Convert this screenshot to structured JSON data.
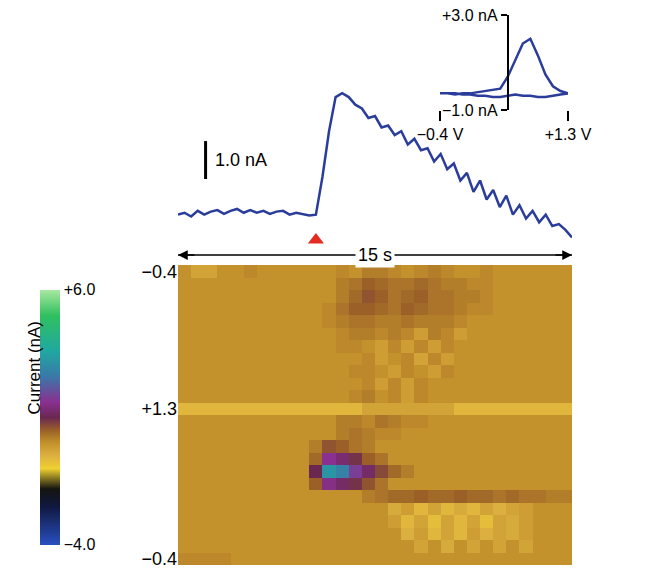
{
  "chart_data": [
    {
      "type": "line",
      "x": [
        0,
        0.25,
        0.5,
        0.75,
        1,
        1.25,
        1.5,
        1.75,
        2,
        2.25,
        2.5,
        2.75,
        3,
        3.25,
        3.5,
        3.75,
        4,
        4.25,
        4.5,
        4.75,
        5,
        5.25,
        5.5,
        5.75,
        6,
        6.25,
        6.5,
        6.75,
        7,
        7.25,
        7.5,
        7.75,
        8,
        8.25,
        8.5,
        8.75,
        9,
        9.25,
        9.5,
        9.75,
        10,
        10.25,
        10.5,
        10.75,
        11,
        11.25,
        11.5,
        11.75,
        12,
        12.25,
        12.5,
        12.75,
        13,
        13.25,
        13.5,
        13.75,
        14,
        14.25,
        14.5,
        14.75,
        15
      ],
      "values": [
        0,
        0.05,
        -0.05,
        0.1,
        0,
        0.08,
        0.12,
        0.02,
        0.1,
        0.15,
        0.05,
        0.12,
        0.05,
        0.1,
        0.02,
        0.08,
        0.1,
        0,
        0.05,
        0.02,
        -0.02,
        0,
        1.0,
        2.2,
        3.1,
        3.2,
        3.1,
        2.9,
        2.8,
        2.55,
        2.6,
        2.3,
        2.35,
        2.1,
        2.2,
        1.85,
        2.0,
        1.7,
        1.75,
        1.4,
        1.6,
        1.2,
        1.35,
        0.9,
        1.1,
        0.6,
        0.9,
        0.4,
        0.65,
        0.2,
        0.5,
        0.0,
        0.25,
        -0.1,
        0.1,
        -0.2,
        0.0,
        -0.3,
        -0.25,
        -0.4,
        -0.6
      ],
      "color": "#2b3d9b",
      "xlim": [
        0,
        15
      ],
      "ylim": [
        -0.8,
        3.55
      ],
      "tick_labels": false,
      "time_span": {
        "value": 15,
        "label": "15 s"
      },
      "scale_bar": {
        "value": 1.0,
        "label": "1.0 nA"
      },
      "stimulus": {
        "x": 5.25,
        "color": "#e32b22",
        "marker": "triangle-up"
      }
    },
    {
      "type": "line",
      "x": [
        -0.4,
        -0.3,
        -0.2,
        -0.1,
        0,
        0.1,
        0.2,
        0.3,
        0.4,
        0.5,
        0.6,
        0.7,
        0.8,
        0.9,
        1.0,
        1.1,
        1.2,
        1.3,
        1.2,
        1.1,
        1.0,
        0.9,
        0.8,
        0.7,
        0.6,
        0.5,
        0.4,
        0.3,
        0.2,
        0.1,
        0,
        -0.1,
        -0.2,
        -0.3,
        -0.4
      ],
      "values": [
        -0.3,
        -0.3,
        -0.35,
        -0.3,
        -0.3,
        -0.25,
        -0.2,
        -0.15,
        -0.1,
        0.4,
        1.1,
        1.8,
        2.0,
        1.3,
        0.5,
        0.0,
        -0.2,
        -0.3,
        -0.35,
        -0.4,
        -0.45,
        -0.45,
        -0.4,
        -0.4,
        -0.35,
        -0.4,
        -0.45,
        -0.45,
        -0.4,
        -0.4,
        -0.35,
        -0.35,
        -0.3,
        -0.3,
        -0.3
      ],
      "color": "#2b3d9b",
      "xlim": [
        -0.4,
        1.3
      ],
      "xticks": [
        {
          "value": -0.4,
          "label": "−0.4 V"
        },
        {
          "value": 1.3,
          "label": "+1.3 V"
        }
      ],
      "ylim": [
        -1,
        3
      ],
      "yticks": [
        {
          "value": -1,
          "label": "−1.0 nA"
        },
        {
          "value": 3,
          "label": "+3.0 nA"
        }
      ]
    },
    {
      "type": "heatmap",
      "x": [
        0.25,
        0.75,
        1.25,
        1.75,
        2.25,
        2.75,
        3.25,
        3.75,
        4.25,
        4.75,
        5.25,
        5.75,
        6.25,
        6.75,
        7.25,
        7.75,
        8.25,
        8.75,
        9.25,
        9.75,
        10.25,
        10.75,
        11.25,
        11.75,
        12.25,
        12.75,
        13.25,
        13.75,
        14.25,
        14.75
      ],
      "xlim": [
        0,
        15
      ],
      "y_categories": [
        "−0.4",
        null,
        null,
        null,
        null,
        null,
        null,
        null,
        null,
        null,
        null,
        "+1.3",
        null,
        null,
        null,
        null,
        null,
        null,
        null,
        null,
        null,
        null,
        null,
        "−0.4"
      ],
      "tick_labels": "y",
      "z": [
        [
          0,
          -0.3,
          -0.3,
          0,
          0,
          0.1,
          0,
          0,
          0,
          0,
          0,
          0,
          0.1,
          0,
          0.2,
          0.2,
          0.1,
          0,
          0.1,
          0.2,
          0.1,
          0,
          0,
          0.1,
          0,
          0,
          0,
          0,
          0,
          0
        ],
        [
          0,
          0,
          0,
          0,
          0,
          0,
          0,
          0,
          0,
          0,
          0,
          0,
          0.2,
          0.3,
          0.5,
          0.4,
          0.3,
          0.3,
          0.4,
          0.3,
          0.2,
          0.2,
          0.1,
          0.1,
          0,
          0,
          0,
          0,
          0,
          0
        ],
        [
          0,
          0,
          0,
          0,
          0,
          0,
          0,
          0,
          0,
          0,
          0,
          0,
          0.2,
          0.4,
          0.6,
          0.5,
          0.3,
          0.4,
          0.5,
          0.3,
          0.3,
          0.2,
          0.2,
          0.1,
          0,
          0,
          0,
          0,
          0,
          0
        ],
        [
          0,
          0,
          0,
          0,
          0,
          0,
          0,
          0,
          0,
          0,
          0,
          0.1,
          0.3,
          0.5,
          0.5,
          0.4,
          0.3,
          0.5,
          0.4,
          0.3,
          0.3,
          0.2,
          0.1,
          0.1,
          0,
          0,
          0,
          0,
          0,
          0
        ],
        [
          0,
          0,
          0,
          0,
          0,
          0,
          0,
          0,
          0,
          0,
          0,
          0.1,
          0.2,
          0.3,
          0.3,
          0.2,
          0.2,
          0.3,
          0.2,
          0.2,
          0.2,
          0.1,
          0,
          0,
          0,
          0,
          0,
          0,
          0,
          0
        ],
        [
          0,
          0,
          0,
          0,
          0,
          0,
          0,
          0,
          0,
          0,
          0,
          0,
          0.1,
          0.2,
          0.2,
          0.1,
          0.2,
          0.1,
          -0.2,
          0.2,
          0.1,
          -0.2,
          0,
          0,
          0,
          0,
          0,
          0,
          0,
          0
        ],
        [
          0,
          0,
          0,
          0,
          0,
          0,
          0,
          0,
          0,
          0,
          0,
          0,
          0.1,
          0.1,
          0,
          -0.2,
          0.1,
          -0.2,
          0.1,
          -0.2,
          0.1,
          0,
          0,
          0,
          0,
          0,
          0,
          0,
          0,
          0
        ],
        [
          0,
          0,
          0,
          0,
          0,
          0,
          0,
          0,
          0,
          0,
          0,
          0,
          0,
          0,
          0.1,
          -0.2,
          0,
          0.1,
          -0.3,
          0.1,
          -0.2,
          0,
          0,
          0,
          0,
          0,
          0,
          0,
          0,
          0
        ],
        [
          0,
          0,
          0,
          0,
          0,
          0,
          0,
          0,
          0,
          0,
          0,
          0,
          0,
          0.1,
          0.1,
          0,
          -0.2,
          0.1,
          0,
          -0.2,
          0.1,
          0,
          0,
          0,
          0,
          0,
          0,
          0,
          0,
          0
        ],
        [
          0,
          0,
          0,
          0,
          0,
          0,
          0,
          0,
          0,
          0,
          0,
          0,
          0,
          0,
          0.1,
          -0.2,
          0.1,
          -0.2,
          0.1,
          0,
          0,
          0,
          0,
          0,
          0,
          0,
          0,
          0,
          0,
          0
        ],
        [
          0,
          0,
          0,
          0,
          0,
          0,
          0,
          0,
          0,
          0,
          0,
          0,
          0,
          0.1,
          0.2,
          0,
          0.1,
          -0.2,
          0.1,
          0,
          0,
          0,
          0,
          0,
          0,
          0,
          0,
          0,
          0,
          0
        ],
        [
          -0.6,
          -0.6,
          -0.6,
          -0.6,
          -0.6,
          -0.6,
          -0.6,
          -0.6,
          -0.6,
          -0.6,
          -0.6,
          -0.6,
          -0.6,
          -0.6,
          -0.3,
          -0.3,
          -0.3,
          -0.3,
          -0.3,
          -0.3,
          -0.3,
          -0.6,
          -0.6,
          -0.6,
          -0.6,
          -0.6,
          -0.6,
          -0.6,
          -0.6,
          -0.6
        ],
        [
          0,
          0,
          0,
          0,
          0,
          0,
          0,
          0,
          0,
          0,
          0,
          0,
          0.2,
          0.2,
          0.1,
          0.3,
          0.2,
          0.1,
          0.1,
          0,
          0,
          0,
          0,
          0,
          0,
          0,
          0,
          0,
          0,
          0
        ],
        [
          0,
          0,
          0,
          0,
          0,
          0,
          0,
          0,
          0,
          0,
          0,
          0,
          0.2,
          0.3,
          0.2,
          0.1,
          0.1,
          0,
          0,
          0,
          0,
          0,
          0,
          0,
          0,
          0,
          0,
          0,
          0,
          0
        ],
        [
          0,
          0,
          0,
          0,
          0,
          0,
          0,
          0,
          0,
          0,
          0.2,
          0.6,
          0.5,
          0.3,
          0.2,
          0,
          0,
          0,
          0,
          0,
          0,
          0,
          0,
          0,
          0,
          0,
          0,
          0,
          0,
          0
        ],
        [
          0,
          0,
          0,
          0,
          0,
          0,
          0,
          0,
          0,
          0,
          0.4,
          1.6,
          1.3,
          0.9,
          0.5,
          0.3,
          0,
          0,
          0,
          0,
          0,
          0,
          0,
          0,
          0,
          0,
          0,
          0,
          0,
          0
        ],
        [
          0,
          0,
          0,
          0,
          0,
          0,
          0,
          0,
          0,
          0,
          1.0,
          3.2,
          2.8,
          1.8,
          1.2,
          0.7,
          0.4,
          0.2,
          0,
          0,
          0,
          0,
          0,
          0,
          0,
          0,
          0,
          0,
          0,
          0
        ],
        [
          0,
          0,
          0,
          0,
          0,
          0,
          0,
          0,
          0,
          0,
          0.5,
          1.5,
          1.2,
          0.9,
          0.6,
          0.3,
          0,
          0,
          0,
          0,
          0,
          0,
          0,
          0,
          0,
          0,
          0,
          0,
          0,
          0
        ],
        [
          0,
          0,
          0,
          0,
          0,
          0,
          0,
          0,
          0,
          0,
          0,
          0,
          0,
          0,
          0.2,
          0.3,
          0.4,
          0.4,
          0.5,
          0.4,
          0.4,
          0.5,
          0.4,
          0.4,
          0.3,
          0.4,
          0.3,
          0.3,
          0.2,
          0.2
        ],
        [
          0,
          0,
          0,
          0,
          0,
          0,
          0,
          0,
          0,
          0,
          0,
          0,
          0,
          0,
          0,
          0,
          -0.4,
          -0.2,
          -0.6,
          -0.3,
          -0.6,
          -0.4,
          -0.6,
          -0.3,
          -0.5,
          -0.3,
          -0.2,
          0,
          0,
          0
        ],
        [
          0,
          0,
          0,
          0,
          0,
          0,
          0,
          0,
          0,
          0,
          0,
          0,
          0,
          0,
          0,
          0,
          -0.2,
          -0.6,
          -0.3,
          -0.7,
          -0.3,
          -0.6,
          -0.3,
          -0.7,
          -0.3,
          -0.4,
          -0.2,
          0,
          0,
          0
        ],
        [
          0,
          0,
          0,
          0,
          0,
          0,
          0,
          0,
          0,
          0,
          0,
          0,
          0,
          0,
          0,
          0,
          0,
          -0.5,
          -0.2,
          -0.6,
          -0.3,
          -0.6,
          -0.2,
          -0.5,
          -0.3,
          -0.4,
          -0.2,
          0,
          0,
          0
        ],
        [
          0,
          0,
          0,
          0,
          0,
          0,
          0,
          0,
          0,
          0,
          0,
          0,
          0,
          0,
          0,
          0,
          0,
          0,
          -0.3,
          0,
          -0.4,
          0,
          -0.3,
          0,
          -0.3,
          0,
          -0.3,
          0,
          0,
          0
        ],
        [
          0.1,
          0.1,
          0.1,
          0.1,
          0,
          0,
          0,
          0,
          0,
          0,
          0,
          0,
          0,
          0,
          0,
          0,
          0,
          0,
          0,
          0,
          0,
          0,
          0,
          0,
          0,
          0,
          0,
          0,
          0,
          0
        ]
      ],
      "colorbar": {
        "title": "Current (nA)",
        "range": [
          -4,
          6
        ],
        "ticks": [
          {
            "value": 6,
            "label": "+6.0"
          },
          {
            "value": -4,
            "label": "−4.0"
          }
        ]
      }
    }
  ]
}
